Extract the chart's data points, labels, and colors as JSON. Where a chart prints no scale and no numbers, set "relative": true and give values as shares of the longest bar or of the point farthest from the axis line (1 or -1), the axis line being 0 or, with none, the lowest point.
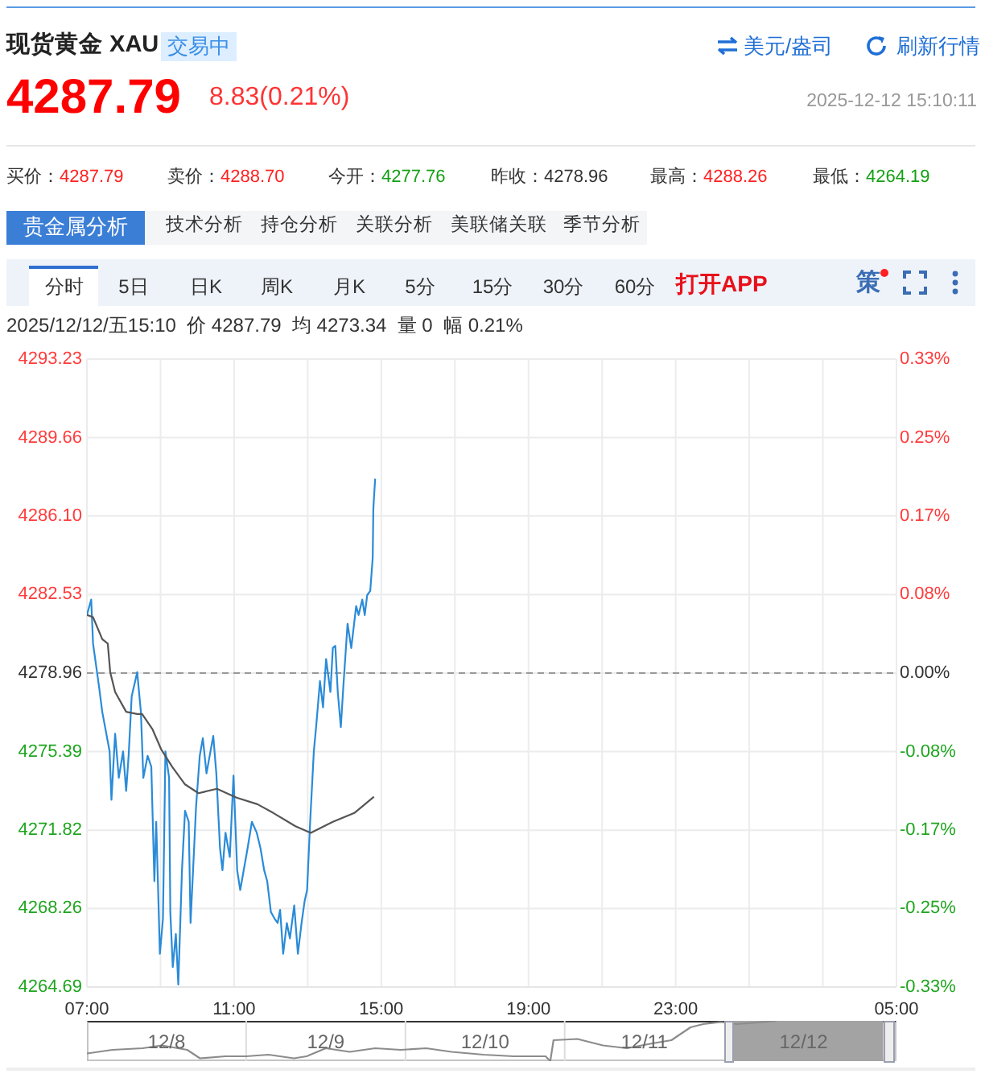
{
  "chart_data": [
    {
      "type": "line",
      "title": "现货黄金 XAU",
      "annotations": [
        "交易中",
        "美元/盎司",
        "刷新行情",
        "4287.79",
        "8.83(0.21%)",
        "2025-12-12 15:10:11",
        "买价：",
        "4287.79",
        "卖价：",
        "4288.70",
        "今开：",
        "4277.76",
        "昨收：",
        "4278.96",
        "最高：",
        "4288.26",
        "最低：",
        "4264.19",
        "贵金属分析",
        "技术分析",
        "持仓分析",
        "关联分析",
        "美联储关联",
        "季节分析",
        "分时",
        "5日",
        "日K",
        "周K",
        "月K",
        "5分",
        "15分",
        "30分",
        "60分",
        "打开APP",
        "策",
        "2025/12/12/五15:10  价 4287.79  均 4273.34  量 0  幅 0.21%"
      ],
      "series": [
        {
          "color": "#2a8bd8",
          "x": [
            "2025-12-12T07:00",
            "2025-12-12T07:07",
            "2025-12-12T07:10",
            "2025-12-12T07:20",
            "2025-12-12T07:25",
            "2025-12-12T07:37",
            "2025-12-12T07:40",
            "2025-12-12T07:46",
            "2025-12-12T07:52",
            "2025-12-12T07:59",
            "2025-12-12T08:04",
            "2025-12-12T08:08",
            "2025-12-12T08:13",
            "2025-12-12T08:22",
            "2025-12-12T08:28",
            "2025-12-12T08:32",
            "2025-12-12T08:39",
            "2025-12-12T08:45",
            "2025-12-12T08:50",
            "2025-12-12T08:53",
            "2025-12-12T08:59",
            "2025-12-12T09:04",
            "2025-12-12T09:08",
            "2025-12-12T09:14",
            "2025-12-12T09:16",
            "2025-12-12T09:20",
            "2025-12-12T09:25",
            "2025-12-12T09:29",
            "2025-12-12T09:35",
            "2025-12-12T09:40",
            "2025-12-12T09:46",
            "2025-12-12T09:49",
            "2025-12-12T09:58",
            "2025-12-12T10:04",
            "2025-12-12T10:09",
            "2025-12-12T10:15",
            "2025-12-12T10:26",
            "2025-12-12T10:31",
            "2025-12-12T10:37",
            "2025-12-12T10:41",
            "2025-12-12T10:46",
            "2025-12-12T10:53",
            "2025-12-12T10:59",
            "2025-12-12T11:05",
            "2025-12-12T11:10",
            "2025-12-12T11:22",
            "2025-12-12T11:29",
            "2025-12-12T11:37",
            "2025-12-12T11:43",
            "2025-12-12T11:49",
            "2025-12-12T11:54",
            "2025-12-12T12:00",
            "2025-12-12T12:06",
            "2025-12-12T12:11",
            "2025-12-12T12:15",
            "2025-12-12T12:20",
            "2025-12-12T12:26",
            "2025-12-12T12:31",
            "2025-12-12T12:38",
            "2025-12-12T12:44",
            "2025-12-12T12:50",
            "2025-12-12T12:55",
            "2025-12-12T12:59",
            "2025-12-12T13:04",
            "2025-12-12T13:10",
            "2025-12-12T13:14",
            "2025-12-12T13:20",
            "2025-12-12T13:25",
            "2025-12-12T13:30",
            "2025-12-12T13:37",
            "2025-12-12T13:41",
            "2025-12-12T13:45",
            "2025-12-12T13:49",
            "2025-12-12T13:54",
            "2025-12-12T13:58",
            "2025-12-12T14:05",
            "2025-12-12T14:11",
            "2025-12-12T14:19",
            "2025-12-12T14:23",
            "2025-12-12T14:29",
            "2025-12-12T14:33",
            "2025-12-12T14:37",
            "2025-12-12T14:42",
            "2025-12-12T14:46",
            "2025-12-12T14:47",
            "2025-12-12T14:48",
            "2025-12-12T14:50"
          ],
          "values": [
            4281.6,
            4282.3,
            4280.3,
            4278.3,
            4277.2,
            4275.4,
            4273.2,
            4276.2,
            4274.2,
            4275.4,
            4273.6,
            4275.2,
            4277.9,
            4279.0,
            4277.2,
            4274.2,
            4275.2,
            4274.7,
            4269.5,
            4272.2,
            4266.2,
            4267.8,
            4275.4,
            4274.2,
            4268.1,
            4265.6,
            4267.1,
            4264.8,
            4270.0,
            4272.7,
            4272.2,
            4267.6,
            4272.9,
            4275.2,
            4276.0,
            4274.4,
            4276.1,
            4274.4,
            4271.0,
            4270.0,
            4271.7,
            4270.6,
            4274.3,
            4270.0,
            4269.1,
            4271.0,
            4272.2,
            4271.7,
            4271.0,
            4270.0,
            4269.5,
            4268.1,
            4267.8,
            4267.6,
            4268.2,
            4266.2,
            4267.6,
            4266.9,
            4268.4,
            4266.2,
            4267.6,
            4268.6,
            4269.1,
            4272.2,
            4275.4,
            4276.6,
            4278.6,
            4277.4,
            4279.6,
            4278.1,
            4280.1,
            4280.2,
            4278.1,
            4276.5,
            4278.3,
            4281.2,
            4280.1,
            4282.0,
            4281.6,
            4282.3,
            4281.6,
            4282.5,
            4282.7,
            4284.2,
            4286.4,
            4286.9,
            4287.79
          ]
        },
        {
          "color": "#555555",
          "x": [
            "2025-12-12T07:00",
            "2025-12-12T07:10",
            "2025-12-12T07:25",
            "2025-12-12T07:34",
            "2025-12-12T07:38",
            "2025-12-12T07:46",
            "2025-12-12T08:04",
            "2025-12-12T08:22",
            "2025-12-12T08:30",
            "2025-12-12T08:47",
            "2025-12-12T09:01",
            "2025-12-12T09:19",
            "2025-12-12T09:40",
            "2025-12-12T10:02",
            "2025-12-12T10:32",
            "2025-12-12T11:04",
            "2025-12-12T11:38",
            "2025-12-12T12:04",
            "2025-12-12T12:40",
            "2025-12-12T13:05",
            "2025-12-12T13:41",
            "2025-12-12T14:16",
            "2025-12-12T14:48"
          ],
          "values": [
            4281.6,
            4281.5,
            4280.5,
            4280.3,
            4279.0,
            4278.1,
            4277.2,
            4277.1,
            4277.1,
            4276.4,
            4275.5,
            4274.7,
            4273.9,
            4273.5,
            4273.7,
            4273.3,
            4273.0,
            4272.6,
            4272.0,
            4271.7,
            4272.2,
            4272.6,
            4273.34
          ]
        }
      ],
      "xlim": [
        "2025-12-12T07:00",
        "2025-12-13T05:00"
      ],
      "xticks": [
        {
          "value": "2025-12-12T07:00",
          "label": "07:00"
        },
        {
          "value": "2025-12-12T09:00",
          "label": null
        },
        {
          "value": "2025-12-12T11:00",
          "label": "11:00"
        },
        {
          "value": "2025-12-12T13:00",
          "label": null
        },
        {
          "value": "2025-12-12T15:00",
          "label": "15:00"
        },
        {
          "value": "2025-12-12T17:00",
          "label": null
        },
        {
          "value": "2025-12-12T19:00",
          "label": "19:00"
        },
        {
          "value": "2025-12-12T21:00",
          "label": null
        },
        {
          "value": "2025-12-12T23:00",
          "label": "23:00"
        },
        {
          "value": "2025-12-13T01:00",
          "label": null
        },
        {
          "value": "2025-12-13T03:00",
          "label": null
        },
        {
          "value": "2025-12-13T05:00",
          "label": "05:00"
        }
      ],
      "ylim": [
        4264.69,
        4293.23
      ],
      "yticks": [
        4264.69,
        4268.26,
        4271.82,
        4275.39,
        4278.96,
        4282.53,
        {
          "value": 4286.1,
          "label": "4286.10"
        },
        4289.66,
        4293.23
      ],
      "y2lim": [
        -0.3335,
        0.3335
      ],
      "y2ticks": [
        {
          "value": -0.3335,
          "label": "-0.33%"
        },
        {
          "value": -0.2501,
          "label": "-0.25%"
        },
        {
          "value": -0.1669,
          "label": "-0.17%"
        },
        {
          "value": -0.0834,
          "label": "-0.08%"
        },
        {
          "value": 0,
          "label": "0.00%"
        },
        {
          "value": 0.0834,
          "label": "0.08%"
        },
        {
          "value": 0.1669,
          "label": "0.17%"
        },
        {
          "value": 0.2501,
          "label": "0.25%"
        },
        {
          "value": 0.3335,
          "label": "0.33%"
        }
      ],
      "ref_lines": [
        {
          "axis": "y",
          "value": 4278.96,
          "color": "#999999",
          "line_style": "dashed"
        }
      ],
      "grid": true,
      "marker": "none",
      "line_style": "solid"
    },
    {
      "type": "line",
      "relative": true,
      "series": [
        {
          "color": "#8c8c8c",
          "x": [
            "2025-12-08T07:00",
            "2025-12-08T10:50",
            "2025-12-08T15:24",
            "2025-12-08T18:17",
            "2025-12-08T22:07",
            "2025-12-09T00:02",
            "2025-12-09T03:53",
            "2025-12-09T07:00",
            "2025-12-09T10:22",
            "2025-12-09T14:12",
            "2025-12-09T16:07",
            "2025-12-09T19:00",
            "2025-12-09T22:36",
            "2025-12-10T02:26",
            "2025-12-10T06:17",
            "2025-12-10T10:07",
            "2025-12-10T13:58",
            "2025-12-10T18:46",
            "2025-12-10T23:19",
            "2025-12-11T04:07",
            "2025-12-11T04:50",
            "2025-12-11T05:19",
            "2025-12-11T08:55",
            "2025-12-11T12:46",
            "2025-12-11T16:22",
            "2025-12-11T20:12",
            "2025-12-11T23:05",
            "2025-12-12T01:58",
            "2025-12-12T03:53",
            "2025-12-12T06:31",
            "2025-12-12T08:55",
            "2025-12-12T11:19",
            "2025-12-12T14:55"
          ],
          "values": [
            0.19,
            0.28,
            0.32,
            0.39,
            0.28,
            0.07,
            0.12,
            0.12,
            0.16,
            0.07,
            0.12,
            0.32,
            0.23,
            0.32,
            0.28,
            0.32,
            0.23,
            0.16,
            0.12,
            0.12,
            0,
            0.52,
            0.55,
            0.39,
            0.32,
            0.44,
            0.52,
            0.84,
            0.92,
            0.97,
            0.92,
            0.95,
            1
          ]
        }
      ],
      "xlim": [
        "2025-12-08T07:00",
        "2025-12-13T09:00"
      ],
      "xticks": [
        {
          "value": "2025-12-08T19:00",
          "label": "12/8"
        },
        {
          "value": "2025-12-09T19:00",
          "label": "12/9"
        },
        {
          "value": "2025-12-10T19:00",
          "label": "12/10"
        },
        {
          "value": "2025-12-11T19:00",
          "label": "12/11"
        },
        {
          "value": "2025-12-12T19:00",
          "label": "12/12"
        }
      ],
      "ref_lines": [
        {
          "axis": "x",
          "value": "2025-12-09T07:00",
          "color": "#dddddd"
        },
        {
          "axis": "x",
          "value": "2025-12-10T07:00",
          "color": "#dddddd"
        },
        {
          "axis": "x",
          "value": "2025-12-11T07:00",
          "color": "#dddddd"
        }
      ],
      "bands": [
        {
          "axis": "x",
          "from": "2025-12-12T08:26",
          "to": "2025-12-13T07:00",
          "color": "#a3a3a3"
        }
      ]
    }
  ]
}
